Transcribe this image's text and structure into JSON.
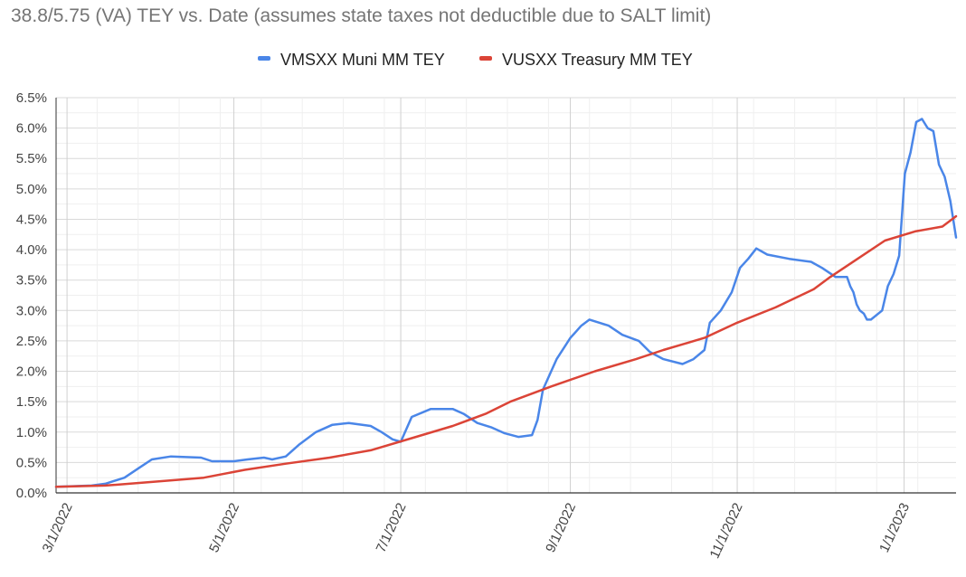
{
  "chart_data": {
    "type": "line",
    "title": "38.8/5.75 (VA) TEY vs. Date (assumes state taxes not deductible due to SALT limit)",
    "xlabel": "",
    "ylabel": "",
    "legend_position": "top",
    "grid": true,
    "x_range": [
      "2022-02-25",
      "2023-01-20"
    ],
    "ylim": [
      0,
      6.5
    ],
    "y_ticks": [
      0,
      0.5,
      1.0,
      1.5,
      2.0,
      2.5,
      3.0,
      3.5,
      4.0,
      4.5,
      5.0,
      5.5,
      6.0,
      6.5
    ],
    "y_tick_labels": [
      "0.0%",
      "0.5%",
      "1.0%",
      "1.5%",
      "2.0%",
      "2.5%",
      "3.0%",
      "3.5%",
      "4.0%",
      "4.5%",
      "5.0%",
      "5.5%",
      "6.0%",
      "6.5%"
    ],
    "x_ticks": [
      "2022-03-01",
      "2022-05-01",
      "2022-07-01",
      "2022-09-01",
      "2022-11-01",
      "2023-01-01"
    ],
    "x_tick_labels": [
      "3/1/2022",
      "5/1/2022",
      "7/1/2022",
      "9/1/2022",
      "11/1/2022",
      "1/1/2023"
    ],
    "series": [
      {
        "name": "VMSXX Muni MM TEY",
        "color": "#4a86e8",
        "points": [
          [
            "2022-02-25",
            0.1
          ],
          [
            "2022-03-10",
            0.12
          ],
          [
            "2022-03-15",
            0.15
          ],
          [
            "2022-03-22",
            0.25
          ],
          [
            "2022-03-27",
            0.4
          ],
          [
            "2022-04-01",
            0.55
          ],
          [
            "2022-04-08",
            0.6
          ],
          [
            "2022-04-19",
            0.58
          ],
          [
            "2022-04-23",
            0.52
          ],
          [
            "2022-05-01",
            0.52
          ],
          [
            "2022-05-06",
            0.55
          ],
          [
            "2022-05-12",
            0.58
          ],
          [
            "2022-05-15",
            0.55
          ],
          [
            "2022-05-20",
            0.6
          ],
          [
            "2022-05-25",
            0.8
          ],
          [
            "2022-05-31",
            1.0
          ],
          [
            "2022-06-06",
            1.12
          ],
          [
            "2022-06-12",
            1.15
          ],
          [
            "2022-06-20",
            1.1
          ],
          [
            "2022-06-24",
            1.0
          ],
          [
            "2022-06-28",
            0.88
          ],
          [
            "2022-07-01",
            0.84
          ],
          [
            "2022-07-05",
            1.25
          ],
          [
            "2022-07-12",
            1.38
          ],
          [
            "2022-07-20",
            1.38
          ],
          [
            "2022-07-24",
            1.3
          ],
          [
            "2022-07-29",
            1.15
          ],
          [
            "2022-08-03",
            1.08
          ],
          [
            "2022-08-08",
            0.98
          ],
          [
            "2022-08-13",
            0.92
          ],
          [
            "2022-08-18",
            0.95
          ],
          [
            "2022-08-20",
            1.2
          ],
          [
            "2022-08-22",
            1.7
          ],
          [
            "2022-08-27",
            2.2
          ],
          [
            "2022-09-01",
            2.55
          ],
          [
            "2022-09-05",
            2.75
          ],
          [
            "2022-09-08",
            2.85
          ],
          [
            "2022-09-15",
            2.75
          ],
          [
            "2022-09-20",
            2.6
          ],
          [
            "2022-09-26",
            2.5
          ],
          [
            "2022-09-30",
            2.32
          ],
          [
            "2022-10-05",
            2.2
          ],
          [
            "2022-10-12",
            2.12
          ],
          [
            "2022-10-16",
            2.2
          ],
          [
            "2022-10-20",
            2.35
          ],
          [
            "2022-10-22",
            2.8
          ],
          [
            "2022-10-26",
            3.0
          ],
          [
            "2022-10-30",
            3.3
          ],
          [
            "2022-11-02",
            3.7
          ],
          [
            "2022-11-05",
            3.85
          ],
          [
            "2022-11-08",
            4.02
          ],
          [
            "2022-11-12",
            3.92
          ],
          [
            "2022-11-20",
            3.85
          ],
          [
            "2022-11-28",
            3.8
          ],
          [
            "2022-12-02",
            3.7
          ],
          [
            "2022-12-07",
            3.55
          ],
          [
            "2022-12-14",
            3.55
          ],
          [
            "2022-12-18",
            3.4
          ],
          [
            "2022-12-22",
            3.3
          ],
          [
            "2022-12-26",
            3.1
          ],
          [
            "2022-12-30",
            3.0
          ],
          [
            "2023-01-04",
            2.95
          ],
          [
            "2023-01-08",
            2.85
          ],
          [
            "2023-01-13",
            2.85
          ],
          [
            "2023-01-15",
            3.0
          ],
          [
            "2023-01-17",
            3.4
          ],
          [
            "2023-01-19",
            3.6
          ],
          [
            "2023-01-20",
            3.9
          ],
          [
            "2023-01-20",
            5.25
          ],
          [
            "2023-01-20",
            5.6
          ],
          [
            "2023-01-20",
            6.1
          ],
          [
            "2023-01-20",
            6.15
          ],
          [
            "2023-01-20",
            6.0
          ],
          [
            "2023-01-20",
            5.95
          ],
          [
            "2023-01-20",
            5.4
          ],
          [
            "2023-01-20",
            5.2
          ],
          [
            "2023-01-20",
            4.8
          ],
          [
            "2023-01-20",
            4.2
          ]
        ]
      },
      {
        "name": "VUSXX Treasury MM TEY",
        "color": "#db4437",
        "points": [
          [
            "2022-02-25",
            0.1
          ],
          [
            "2022-03-15",
            0.12
          ],
          [
            "2022-04-01",
            0.18
          ],
          [
            "2022-04-20",
            0.25
          ],
          [
            "2022-05-05",
            0.38
          ],
          [
            "2022-05-20",
            0.48
          ],
          [
            "2022-06-05",
            0.58
          ],
          [
            "2022-06-20",
            0.7
          ],
          [
            "2022-07-05",
            0.9
          ],
          [
            "2022-07-20",
            1.1
          ],
          [
            "2022-08-01",
            1.3
          ],
          [
            "2022-08-10",
            1.5
          ],
          [
            "2022-08-25",
            1.75
          ],
          [
            "2022-09-10",
            2.0
          ],
          [
            "2022-09-25",
            2.2
          ],
          [
            "2022-10-05",
            2.35
          ],
          [
            "2022-10-20",
            2.55
          ],
          [
            "2022-11-01",
            2.8
          ],
          [
            "2022-11-15",
            3.05
          ],
          [
            "2022-11-29",
            3.35
          ],
          [
            "2022-12-05",
            3.55
          ],
          [
            "2022-12-15",
            3.85
          ],
          [
            "2022-12-25",
            4.15
          ],
          [
            "2023-01-05",
            4.3
          ],
          [
            "2023-01-15",
            4.38
          ],
          [
            "2023-01-20",
            4.55
          ]
        ]
      }
    ]
  }
}
